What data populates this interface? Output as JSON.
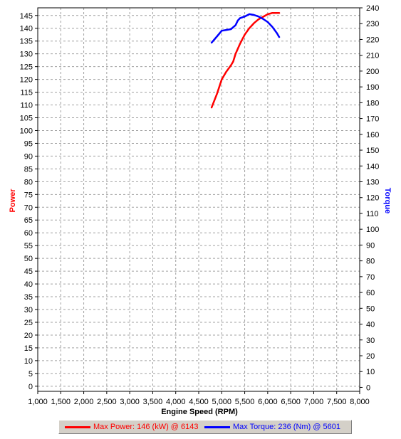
{
  "chart_data": {
    "type": "line",
    "xlabel": "Engine Speed (RPM)",
    "y_left_label": "Power",
    "y_right_label": "Torque",
    "xlim": [
      1000,
      8000
    ],
    "ylim_left": [
      -2,
      148
    ],
    "ylim_right": [
      -2.5,
      240
    ],
    "x_ticks": [
      "1,000",
      "1,500",
      "2,000",
      "2,500",
      "3,000",
      "3,500",
      "4,000",
      "4,500",
      "5,000",
      "5,500",
      "6,000",
      "6,500",
      "7,000",
      "7,500",
      "8,000"
    ],
    "y_left_ticks": [
      "0",
      "5",
      "10",
      "15",
      "20",
      "25",
      "30",
      "35",
      "40",
      "45",
      "50",
      "55",
      "60",
      "65",
      "70",
      "75",
      "80",
      "85",
      "90",
      "95",
      "100",
      "105",
      "110",
      "115",
      "120",
      "125",
      "130",
      "135",
      "140",
      "145"
    ],
    "y_right_ticks": [
      "0",
      "10",
      "20",
      "30",
      "40",
      "50",
      "60",
      "70",
      "80",
      "90",
      "100",
      "110",
      "120",
      "130",
      "140",
      "150",
      "160",
      "170",
      "180",
      "190",
      "200",
      "210",
      "220",
      "230",
      "240"
    ],
    "grid": true,
    "legend_position": "bottom",
    "colors": {
      "power": "#ff0000",
      "torque": "#0000ff",
      "left_axis": "#ff0000",
      "right_axis": "#0000ff"
    },
    "series": [
      {
        "name": "Power",
        "axis": "left",
        "x": [
          4780,
          4900,
          5000,
          5100,
          5200,
          5250,
          5300,
          5350,
          5400,
          5500,
          5600,
          5700,
          5800,
          5900,
          6000,
          6100,
          6143,
          6200,
          6250
        ],
        "y": [
          109,
          114.5,
          120,
          123,
          125.5,
          127,
          130,
          132,
          134,
          137.5,
          140,
          142,
          143.5,
          144.5,
          145.5,
          146,
          146,
          146,
          146
        ]
      },
      {
        "name": "Torque",
        "axis": "right",
        "x": [
          4780,
          4900,
          5000,
          5100,
          5200,
          5300,
          5350,
          5400,
          5500,
          5601,
          5700,
          5800,
          5900,
          6000,
          6100,
          6200,
          6250
        ],
        "y": [
          218,
          222,
          225.5,
          226,
          226.5,
          229,
          232,
          233.5,
          234.5,
          236,
          235.5,
          234.5,
          233,
          231,
          228,
          224,
          221.5
        ]
      }
    ]
  },
  "legend": {
    "power_text": "Max Power: 146 (kW) @ 6143",
    "torque_text": "Max Torque: 236 (Nm) @ 5601"
  }
}
